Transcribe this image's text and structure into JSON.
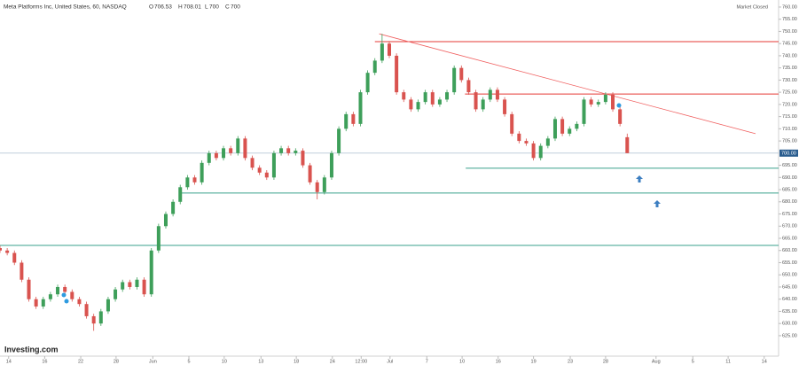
{
  "chart_data": {
    "type": "candlestick",
    "title": "Meta Platforms Inc, United States, 60, NASDAQ",
    "ohlc_labels": [
      "O",
      "H",
      "L",
      "C"
    ],
    "status": "Market Closed",
    "watermark": "Investing.com",
    "up_color": "#3e9f5a",
    "down_color": "#d9534f",
    "open": [
      661,
      660,
      659,
      655,
      648,
      640,
      637,
      640,
      642,
      645,
      643,
      640,
      638,
      633,
      630,
      635,
      640,
      644,
      647,
      645,
      648,
      642,
      660,
      670,
      675,
      680,
      686,
      690,
      688,
      696,
      700,
      698,
      702,
      700,
      706,
      698,
      694,
      692,
      690,
      700,
      702,
      700,
      701,
      695,
      688,
      684,
      690,
      700,
      710,
      716,
      712,
      725,
      733,
      738,
      745,
      740,
      725,
      722,
      718,
      721,
      725,
      720,
      722,
      725,
      735,
      730,
      725,
      718,
      722,
      726,
      722,
      716,
      708,
      705,
      704,
      698,
      703,
      706,
      714,
      708,
      710,
      712,
      722,
      720,
      721,
      724,
      718,
      706.53
    ],
    "high": [
      662,
      661,
      660,
      656,
      649,
      641,
      641,
      643,
      646,
      646,
      644,
      641,
      639,
      634,
      636,
      641,
      645,
      648,
      648,
      649,
      649,
      661,
      671,
      676,
      681,
      687,
      691,
      691,
      697,
      701,
      701,
      703,
      703,
      707,
      707,
      699,
      695,
      693,
      701,
      703,
      703,
      702,
      702,
      696,
      689,
      691,
      701,
      711,
      717,
      717,
      726,
      734,
      739,
      749,
      746,
      741,
      726,
      723,
      722,
      726,
      726,
      723,
      726,
      736,
      736,
      731,
      726,
      723,
      727,
      727,
      723,
      717,
      709,
      706,
      705,
      704,
      707,
      715,
      715,
      711,
      713,
      723,
      723,
      722,
      725,
      725,
      719,
      708.01
    ],
    "low": [
      659,
      658,
      654,
      647,
      639,
      636,
      636,
      639,
      641,
      642,
      639,
      637,
      632,
      627,
      629,
      634,
      639,
      643,
      644,
      644,
      641,
      641,
      659,
      669,
      674,
      679,
      685,
      687,
      687,
      695,
      697,
      697,
      699,
      699,
      697,
      693,
      691,
      689,
      689,
      699,
      699,
      699,
      694,
      687,
      681,
      683,
      689,
      699,
      709,
      711,
      711,
      724,
      732,
      737,
      739,
      724,
      721,
      717,
      717,
      720,
      719,
      719,
      721,
      724,
      729,
      724,
      717,
      717,
      721,
      721,
      715,
      707,
      704,
      703,
      697,
      697,
      702,
      705,
      707,
      707,
      709,
      711,
      719,
      719,
      720,
      717,
      711,
      700
    ],
    "close": [
      660,
      659,
      655,
      648,
      640,
      637,
      640,
      642,
      645,
      643,
      640,
      638,
      633,
      630,
      635,
      640,
      644,
      647,
      645,
      648,
      642,
      660,
      670,
      675,
      680,
      686,
      690,
      688,
      696,
      700,
      698,
      702,
      700,
      706,
      698,
      694,
      692,
      690,
      700,
      702,
      700,
      701,
      695,
      688,
      684,
      690,
      700,
      710,
      716,
      712,
      725,
      733,
      738,
      745,
      740,
      725,
      722,
      718,
      721,
      725,
      720,
      722,
      725,
      735,
      730,
      725,
      718,
      722,
      726,
      722,
      716,
      708,
      705,
      704,
      698,
      703,
      706,
      714,
      708,
      710,
      712,
      722,
      720,
      721,
      724,
      718,
      712,
      700
    ],
    "last_price": {
      "value": 700,
      "label": "700.00"
    },
    "levels": [
      {
        "value": 745.8,
        "color": "#e53935",
        "start": 52
      },
      {
        "value": 724.3,
        "color": "#e53935",
        "start": 64.5
      },
      {
        "value": 693.8,
        "color": "#3aa08c",
        "start": 64.6
      },
      {
        "value": 683.6,
        "color": "#3aa08c",
        "start": 25.2
      },
      {
        "value": 662.1,
        "color": "#3aa08c",
        "start": 0
      }
    ],
    "trendline": {
      "x": [
        52.6,
        104.8
      ],
      "y": [
        749,
        708
      ],
      "color": "#f06060"
    },
    "xlim": [
      0,
      108
    ],
    "ylim": [
      616.6,
      762.9
    ],
    "xticks": [
      {
        "value": 1.2,
        "label": "14"
      },
      {
        "value": 6.2,
        "label": "16"
      },
      {
        "value": 11.2,
        "label": "22"
      },
      {
        "value": 16.1,
        "label": "28"
      },
      {
        "value": 21.2,
        "label": "Jun"
      },
      {
        "value": 26.2,
        "label": "5"
      },
      {
        "value": 31.1,
        "label": "10"
      },
      {
        "value": 36.2,
        "label": "13"
      },
      {
        "value": 41.1,
        "label": "18"
      },
      {
        "value": 46.1,
        "label": "24"
      },
      {
        "value": 50.1,
        "label": "12:00"
      },
      {
        "value": 54.1,
        "label": "Jul"
      },
      {
        "value": 59.2,
        "label": "7"
      },
      {
        "value": 64.1,
        "label": "10"
      },
      {
        "value": 69.1,
        "label": "16"
      },
      {
        "value": 74.0,
        "label": "19"
      },
      {
        "value": 79.1,
        "label": "23"
      },
      {
        "value": 84.0,
        "label": "28"
      },
      {
        "value": 91.0,
        "label": "Aug"
      },
      {
        "value": 96.1,
        "label": "5"
      },
      {
        "value": 101,
        "label": "11"
      },
      {
        "value": 106,
        "label": "14"
      }
    ],
    "yticks": [
      {
        "value": 760,
        "label": "760.00"
      },
      {
        "value": 755,
        "label": "755.00"
      },
      {
        "value": 750,
        "label": "750.00"
      },
      {
        "value": 745,
        "label": "745.00"
      },
      {
        "value": 740,
        "label": "740.00"
      },
      {
        "value": 735,
        "label": "735.00"
      },
      {
        "value": 730,
        "label": "730.00"
      },
      {
        "value": 725,
        "label": "725.00"
      },
      {
        "value": 720,
        "label": "720.00"
      },
      {
        "value": 715,
        "label": "715.00"
      },
      {
        "value": 710,
        "label": "710.00"
      },
      {
        "value": 705,
        "label": "705.00"
      },
      {
        "value": 695,
        "label": "695.00"
      },
      {
        "value": 690,
        "label": "690.00"
      },
      {
        "value": 685,
        "label": "685.00"
      },
      {
        "value": 680,
        "label": "680.00"
      },
      {
        "value": 675,
        "label": "675.00"
      },
      {
        "value": 670,
        "label": "670.00"
      },
      {
        "value": 665,
        "label": "665.00"
      },
      {
        "value": 660,
        "label": "660.00"
      },
      {
        "value": 655,
        "label": "655.00"
      },
      {
        "value": 650,
        "label": "650.00"
      },
      {
        "value": 645,
        "label": "645.00"
      },
      {
        "value": 640,
        "label": "640.00"
      },
      {
        "value": 635,
        "label": "635.00"
      },
      {
        "value": 630,
        "label": "630.00"
      },
      {
        "value": 625,
        "label": "625.00"
      }
    ]
  }
}
